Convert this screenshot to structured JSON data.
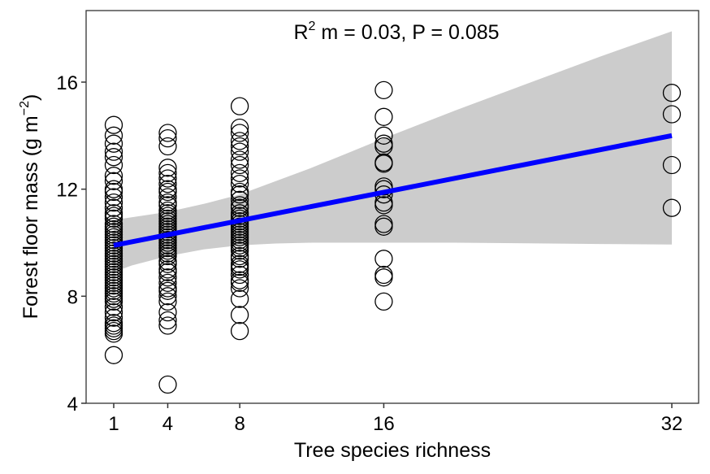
{
  "chart_data": {
    "type": "scatter",
    "title": "",
    "annotation": {
      "r_label": "R",
      "r_superscript": "2",
      "rest": " m = 0.03, P = 0.085"
    },
    "xlabel": "Tree species richness",
    "ylabel": {
      "main": "Forest floor mass (g m",
      "superscript": "−2",
      "close": ")"
    },
    "xlim": [
      -0.5,
      33.5
    ],
    "ylim": [
      4,
      18.6
    ],
    "x_ticks": [
      1,
      4,
      8,
      16,
      32
    ],
    "x_tick_labels": [
      "1",
      "4",
      "8",
      "16",
      "32"
    ],
    "y_ticks": [
      4,
      8,
      12,
      16
    ],
    "y_tick_labels": [
      "4",
      "8",
      "12",
      "16"
    ],
    "grid": false,
    "colors": {
      "points": "#000000",
      "fit_line": "#0000ff",
      "confidence_band": "#cccccc",
      "frame": "#333333"
    },
    "fit_line": {
      "x": [
        1,
        32
      ],
      "y": [
        9.9,
        14.0
      ]
    },
    "confidence_band": {
      "x": [
        1,
        2,
        4,
        6,
        8,
        10,
        12,
        14,
        16,
        20,
        24,
        28,
        32
      ],
      "upper": [
        10.85,
        10.95,
        11.15,
        11.45,
        11.8,
        12.3,
        12.8,
        13.35,
        13.9,
        14.95,
        15.95,
        16.95,
        17.9
      ],
      "lower": [
        8.9,
        9.15,
        9.5,
        9.75,
        9.9,
        9.97,
        10.0,
        10.0,
        10.0,
        10.0,
        9.98,
        9.95,
        9.93
      ]
    },
    "series": [
      {
        "name": "1",
        "x": 1,
        "y": [
          14.4,
          14.0,
          13.7,
          13.4,
          13.2,
          12.9,
          12.5,
          12.3,
          12.0,
          11.9,
          11.7,
          11.5,
          11.3,
          11.1,
          11.0,
          10.9,
          10.7,
          10.6,
          10.5,
          10.4,
          10.3,
          10.2,
          10.1,
          10.0,
          9.9,
          9.8,
          9.7,
          9.6,
          9.5,
          9.4,
          9.3,
          9.2,
          9.1,
          9.0,
          8.9,
          8.8,
          8.7,
          8.6,
          8.5,
          8.4,
          8.3,
          8.2,
          8.1,
          8.0,
          7.9,
          7.8,
          7.6,
          7.4,
          7.2,
          7.0,
          6.9,
          6.8,
          6.7,
          6.6,
          5.8
        ]
      },
      {
        "name": "4",
        "x": 4,
        "y": [
          14.1,
          13.9,
          13.6,
          12.8,
          12.6,
          12.4,
          12.2,
          12.0,
          11.9,
          11.7,
          11.5,
          11.4,
          11.2,
          11.1,
          11.0,
          10.9,
          10.8,
          10.7,
          10.6,
          10.5,
          10.4,
          10.3,
          10.2,
          10.1,
          10.0,
          9.9,
          9.8,
          9.7,
          9.6,
          9.5,
          9.3,
          9.2,
          9.0,
          8.9,
          8.7,
          8.5,
          8.3,
          8.2,
          8.0,
          7.8,
          7.4,
          7.1,
          6.9,
          4.7
        ]
      },
      {
        "name": "8",
        "x": 8,
        "y": [
          15.1,
          14.3,
          14.1,
          13.8,
          13.6,
          13.4,
          13.1,
          12.9,
          12.6,
          12.4,
          12.2,
          11.9,
          11.8,
          11.6,
          11.4,
          11.3,
          11.1,
          11.0,
          10.9,
          10.8,
          10.7,
          10.6,
          10.5,
          10.4,
          10.3,
          10.2,
          10.1,
          10.0,
          9.9,
          9.8,
          9.7,
          9.5,
          9.4,
          9.2,
          9.1,
          9.0,
          8.8,
          8.6,
          8.5,
          8.3,
          7.9,
          7.3,
          6.7
        ]
      },
      {
        "name": "16",
        "x": 16,
        "y": [
          15.7,
          14.7,
          14.0,
          13.7,
          13.6,
          13.0,
          12.95,
          12.1,
          12.0,
          11.8,
          11.5,
          11.4,
          10.7,
          10.6,
          9.4,
          8.8,
          8.7,
          7.8
        ]
      },
      {
        "name": "32",
        "x": 32,
        "y": [
          15.6,
          14.8,
          12.9,
          11.3
        ]
      }
    ]
  }
}
